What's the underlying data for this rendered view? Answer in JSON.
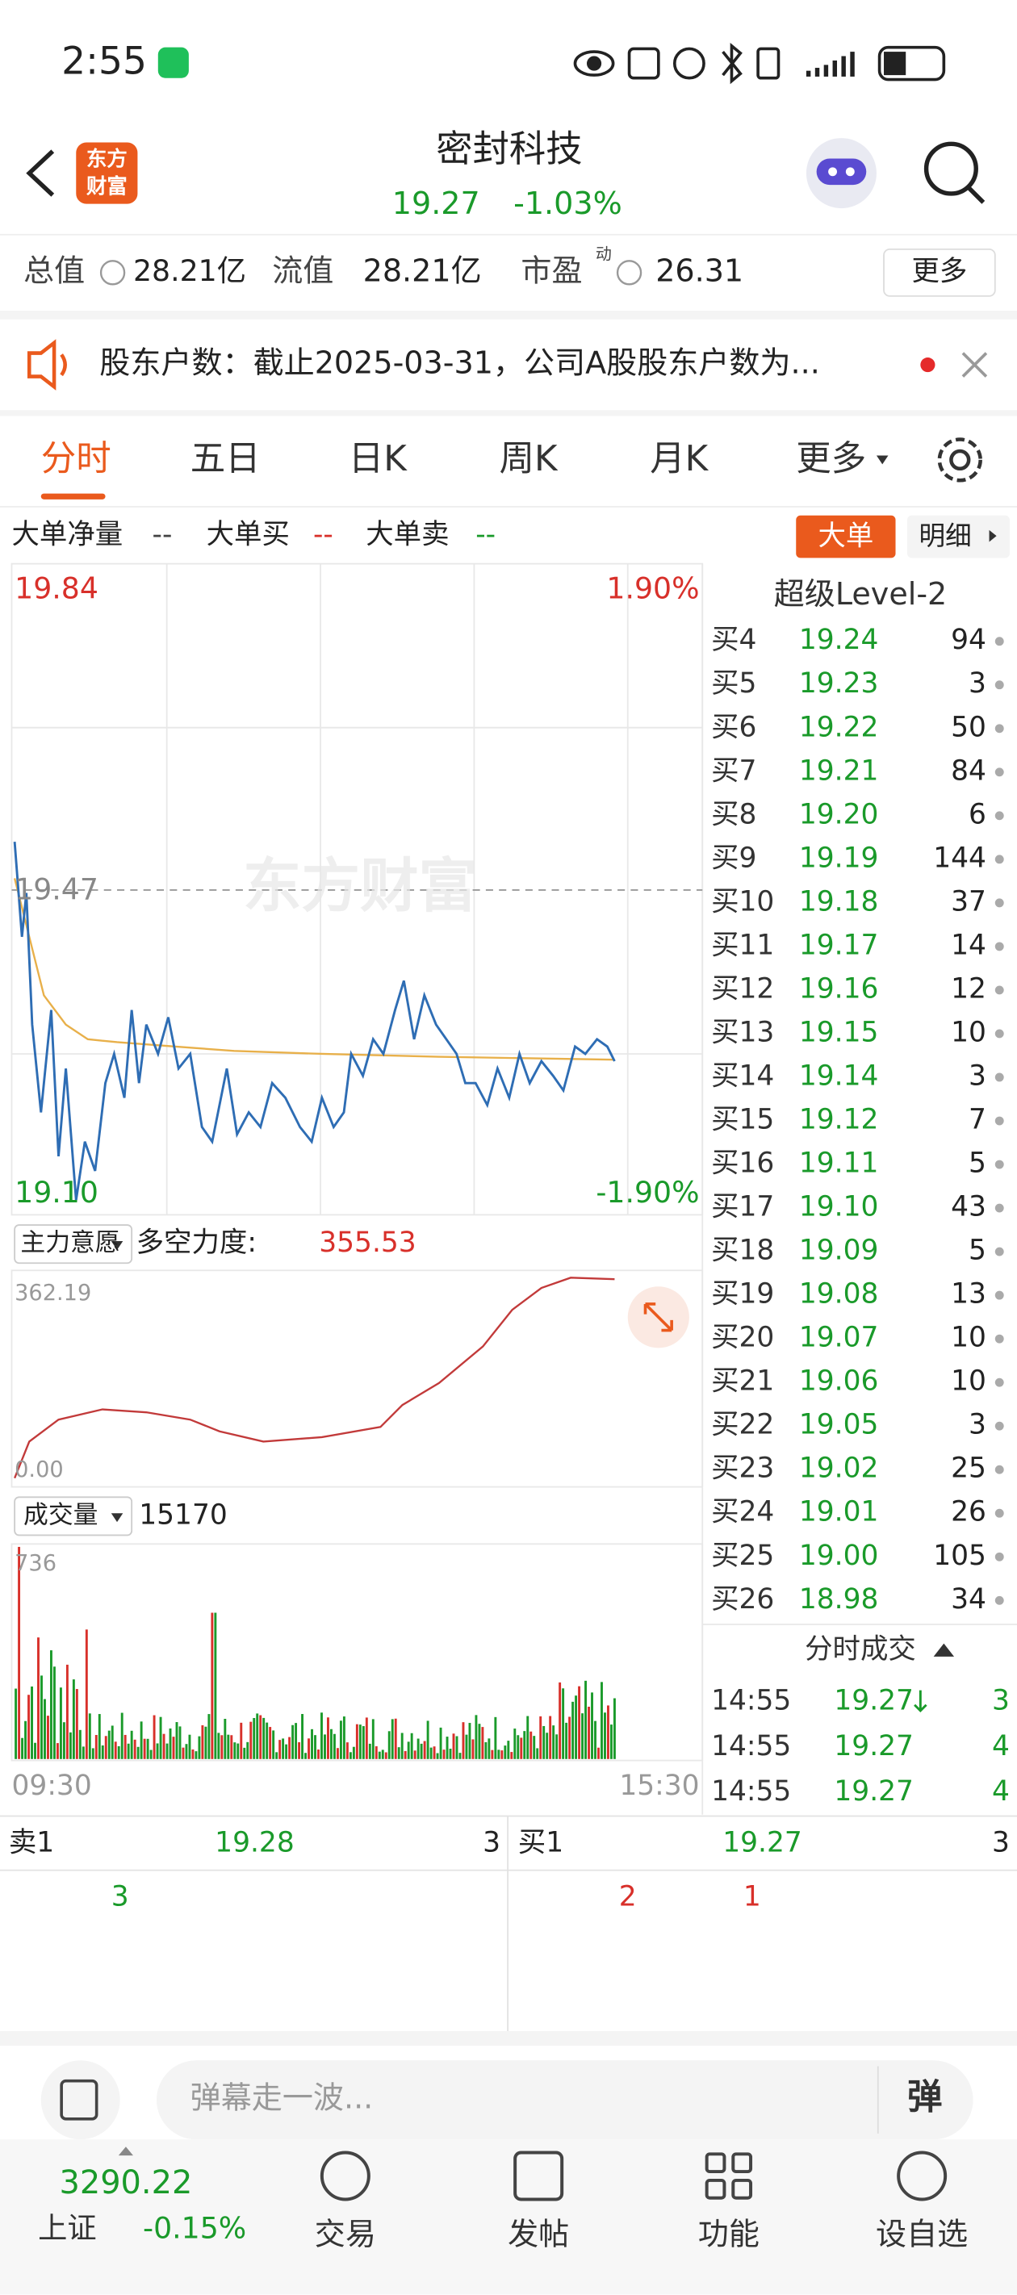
{
  "status_bar": {
    "time": "2:55"
  },
  "header": {
    "logo_line1": "东方",
    "logo_line2": "财富",
    "title": "密封科技",
    "price": "19.27",
    "change": "-1.03%"
  },
  "stats": {
    "total_value_label": "总值",
    "total_value": "28.21亿",
    "float_label": "流值",
    "float_value": "28.21亿",
    "pe_label": "市盈",
    "pe_sup": "动",
    "pe_value": "26.31",
    "more": "更多"
  },
  "notice": "股东户数：截止2025-03-31，公司A股股东户数为...",
  "tabs": [
    "分时",
    "五日",
    "日K",
    "周K",
    "月K",
    "更多"
  ],
  "big_order": {
    "net": "大单净量",
    "net_value": "--",
    "buy": "大单买",
    "buy_value": "--",
    "sell": "大单卖",
    "sell_value": "--",
    "button": "大单",
    "detail": "明细"
  },
  "price_chart": {
    "high": "19.84",
    "high_pct": "1.90%",
    "prev_close": "19.47",
    "low": "19.10",
    "low_pct": "-1.90%",
    "watermark": "东方财富",
    "start": "09:30",
    "end": "15:30"
  },
  "indicator": {
    "name": "主力意愿",
    "label": "多空力度:",
    "value": "355.53",
    "max": "362.19",
    "min": "0.00"
  },
  "volume": {
    "name": "成交量",
    "value": "15170",
    "max": "736"
  },
  "level2": {
    "title": "超级Level-2",
    "rows": [
      [
        "买4",
        "19.24",
        "94"
      ],
      [
        "买5",
        "19.23",
        "3"
      ],
      [
        "买6",
        "19.22",
        "50"
      ],
      [
        "买7",
        "19.21",
        "84"
      ],
      [
        "买8",
        "19.20",
        "6"
      ],
      [
        "买9",
        "19.19",
        "144"
      ],
      [
        "买10",
        "19.18",
        "37"
      ],
      [
        "买11",
        "19.17",
        "14"
      ],
      [
        "买12",
        "19.16",
        "12"
      ],
      [
        "买13",
        "19.15",
        "10"
      ],
      [
        "买14",
        "19.14",
        "3"
      ],
      [
        "买15",
        "19.12",
        "7"
      ],
      [
        "买16",
        "19.11",
        "5"
      ],
      [
        "买17",
        "19.10",
        "43"
      ],
      [
        "买18",
        "19.09",
        "5"
      ],
      [
        "买19",
        "19.08",
        "13"
      ],
      [
        "买20",
        "19.07",
        "10"
      ],
      [
        "买21",
        "19.06",
        "10"
      ],
      [
        "买22",
        "19.05",
        "3"
      ],
      [
        "买23",
        "19.02",
        "25"
      ],
      [
        "买24",
        "19.01",
        "26"
      ],
      [
        "买25",
        "19.00",
        "105"
      ],
      [
        "买26",
        "18.98",
        "34"
      ]
    ]
  },
  "trades": {
    "title": "分时成交",
    "rows": [
      [
        "14:55",
        "19.27",
        "3"
      ],
      [
        "14:55",
        "19.27",
        "4"
      ],
      [
        "14:55",
        "19.27",
        "4"
      ]
    ]
  },
  "quote": {
    "sell_label": "卖1",
    "sell_price": "19.28",
    "sell_qty": "3",
    "buy_label": "买1",
    "buy_price": "19.27",
    "buy_qty": "3",
    "sell_queue": [
      "3"
    ],
    "buy_queue": [
      "2",
      "1"
    ]
  },
  "comment": {
    "placeholder": "弹幕走一波...",
    "danmaku": "弹"
  },
  "nav": {
    "index_value": "3290.22",
    "index_name": "上证",
    "index_change": "-0.15%",
    "items": [
      "交易",
      "发帖",
      "功能",
      "设自选"
    ]
  }
}
